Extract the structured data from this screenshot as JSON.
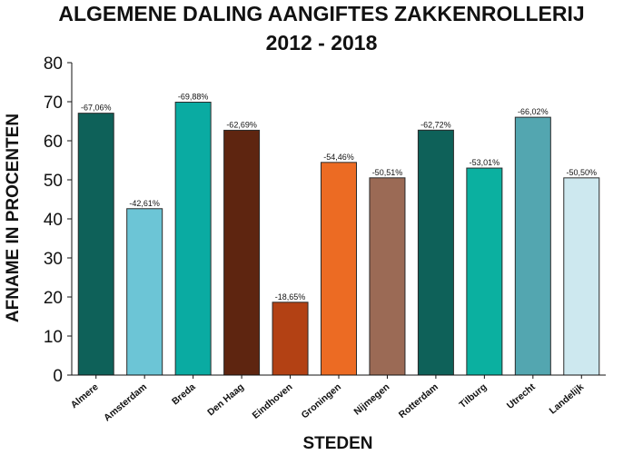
{
  "chart_data": {
    "type": "bar",
    "title": "ALGEMENE DALING AANGIFTES ZAKKENROLLERIJ",
    "subtitle": "2012 - 2018",
    "xlabel": "STEDEN",
    "ylabel": "AFNAME IN PROCENTEN",
    "ylim": [
      0,
      80
    ],
    "yticks": [
      "0",
      "10",
      "20",
      "30",
      "40",
      "50",
      "60",
      "70",
      "80"
    ],
    "grid": false,
    "categories": [
      "Almere",
      "Amsterdam",
      "Breda",
      "Den Haag",
      "Eindhoven",
      "Groningen",
      "Nijmegen",
      "Rotterdam",
      "Tilburg",
      "Utrecht",
      "Landelijk"
    ],
    "values": [
      67.06,
      42.61,
      69.88,
      62.69,
      18.65,
      54.46,
      50.51,
      62.72,
      53.01,
      66.02,
      50.5
    ],
    "data_labels": [
      "-67,06%",
      "-42,61%",
      "-69,88%",
      "-62,69%",
      "-18,65%",
      "-54,46%",
      "-50,51%",
      "-62,72%",
      "-53,01%",
      "-66,02%",
      "-50,50%"
    ],
    "colors": [
      "#0e6159",
      "#6cc5d6",
      "#0aaba2",
      "#5e2510",
      "#b34114",
      "#ec6b23",
      "#9b6a55",
      "#0e6159",
      "#0bb0a0",
      "#53a6b0",
      "#cde8ef"
    ]
  }
}
